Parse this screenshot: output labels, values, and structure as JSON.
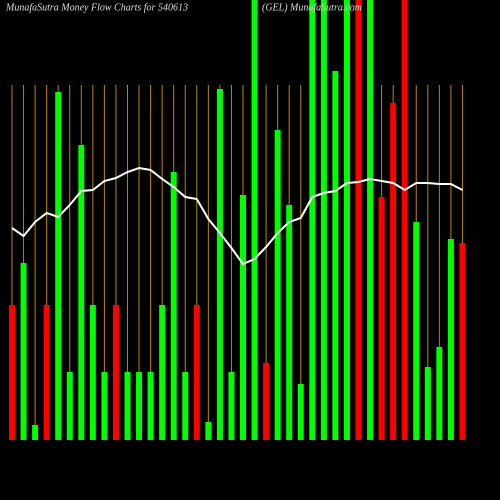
{
  "chart_data": {
    "type": "bar",
    "title": "MunafaSutra  Money Flow  Charts for 540613",
    "subtitle": "(GEL) MunafaSutra.com",
    "categories": [
      null,
      null,
      null,
      null,
      null,
      null,
      null,
      null,
      null,
      null,
      null,
      null,
      null,
      null,
      null,
      null,
      null,
      null,
      null,
      null,
      null,
      null,
      null,
      null,
      null,
      null,
      null,
      null,
      null,
      null,
      null,
      null,
      null,
      null,
      null,
      null,
      null,
      null,
      null,
      null
    ],
    "values": [
      135,
      177,
      15,
      135,
      348,
      68,
      295,
      135,
      68,
      135,
      68,
      68,
      68,
      135,
      268,
      68,
      135,
      18,
      351,
      68,
      245,
      440,
      77,
      310,
      235,
      56,
      440,
      440,
      369,
      440,
      440,
      440,
      243,
      337,
      440,
      218,
      73,
      93,
      201,
      197
    ],
    "colors": [
      "#ff0000",
      "#00ff00",
      "#00ff00",
      "#ff0000",
      "#00ff00",
      "#00ff00",
      "#00ff00",
      "#00ff00",
      "#00ff00",
      "#ff0000",
      "#00ff00",
      "#00ff00",
      "#00ff00",
      "#00ff00",
      "#00ff00",
      "#00ff00",
      "#ff0000",
      "#00ff00",
      "#00ff00",
      "#00ff00",
      "#00ff00",
      "#00ff00",
      "#ff0000",
      "#00ff00",
      "#00ff00",
      "#00ff00",
      "#00ff00",
      "#00ff00",
      "#00ff00",
      "#00ff00",
      "#ff0000",
      "#00ff00",
      "#ff0000",
      "#ff0000",
      "#ff0000",
      "#00ff00",
      "#00ff00",
      "#00ff00",
      "#00ff00",
      "#ff0000"
    ],
    "line": {
      "color": "#ffffff",
      "values": [
        212,
        204,
        218,
        227,
        223,
        235,
        249,
        250,
        259,
        262,
        268,
        272,
        270,
        261,
        253,
        243,
        241,
        221,
        207,
        192,
        176,
        181,
        193,
        207,
        218,
        222,
        243,
        247,
        249,
        257,
        258,
        261,
        259,
        257,
        250,
        257,
        257,
        256,
        256,
        250
      ]
    },
    "ylim": [
      0,
      440
    ],
    "grid": true,
    "grid_color": "#b8860b"
  }
}
